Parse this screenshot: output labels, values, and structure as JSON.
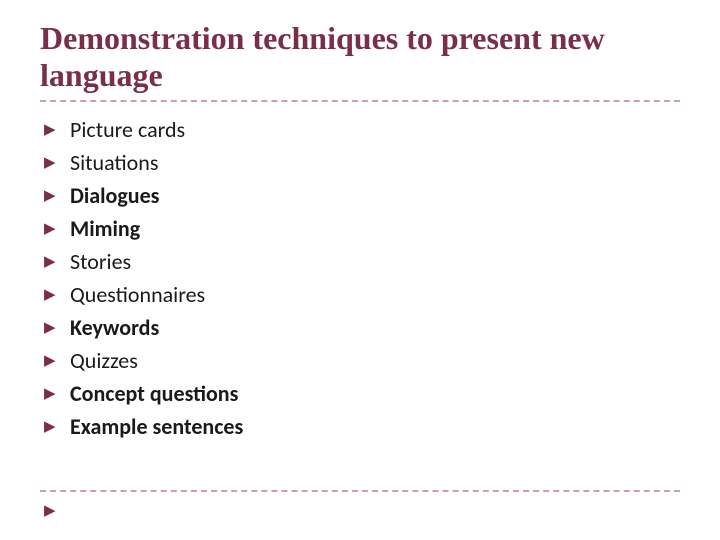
{
  "title": "Demonstration techniques to present new language",
  "accent_color": "#7a2e4a",
  "divider_color": "#c9a0b0",
  "text_color": "#1a1a1a",
  "background_color": "#ffffff",
  "title_fontsize": 32,
  "item_fontsize": 22,
  "bullet_glyph": "▶",
  "items": [
    {
      "label": "Picture cards",
      "bold": false
    },
    {
      "label": "Situations",
      "bold": false
    },
    {
      "label": "Dialogues",
      "bold": true
    },
    {
      "label": "Miming",
      "bold": true
    },
    {
      "label": "Stories",
      "bold": false
    },
    {
      "label": "Questionnaires",
      "bold": false
    },
    {
      "label": "Keywords",
      "bold": true
    },
    {
      "label": "Quizzes",
      "bold": false
    },
    {
      "label": "Concept questions",
      "bold": true
    },
    {
      "label": "Example sentences",
      "bold": true
    }
  ]
}
